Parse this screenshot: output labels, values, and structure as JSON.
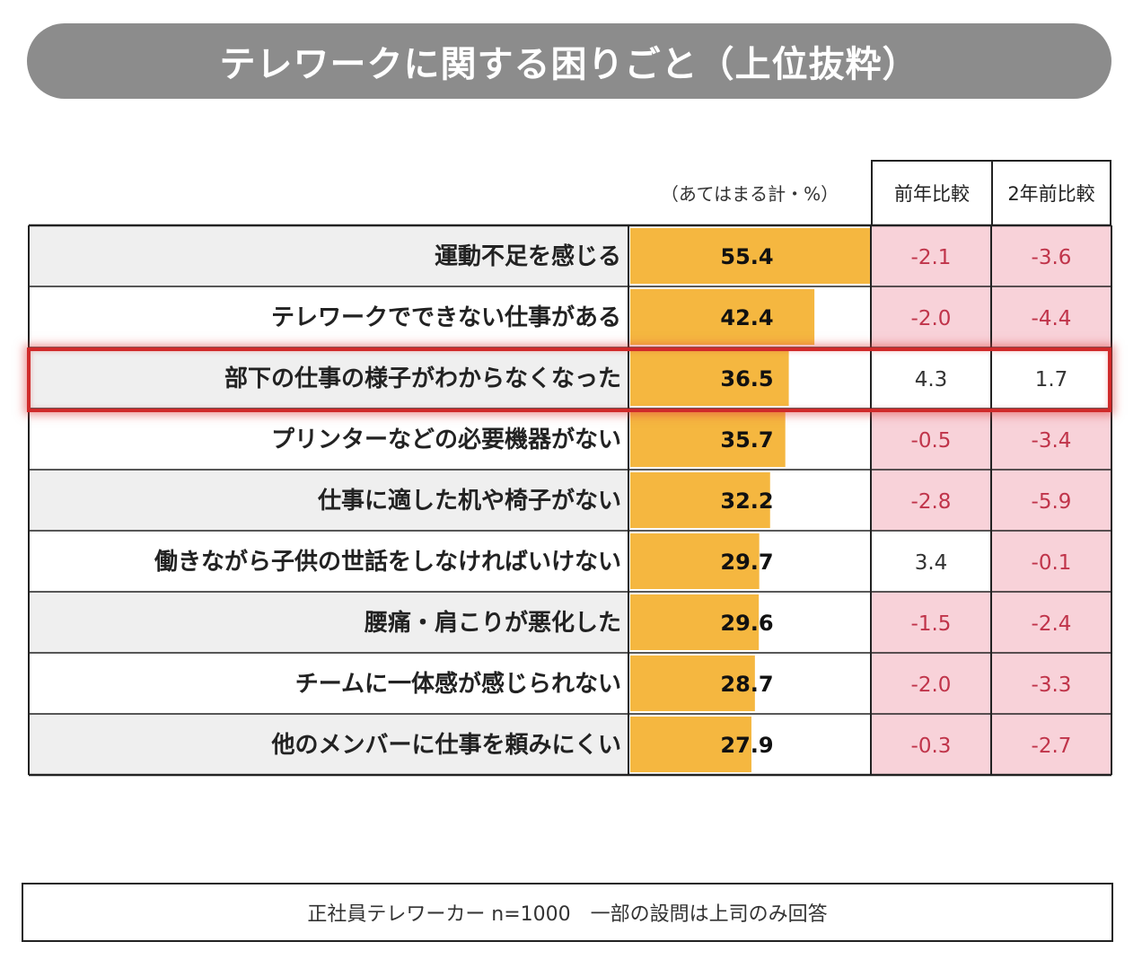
{
  "title": "テレワークに関する困りごと（上位抜粋）",
  "unit_label": "（あてはまる計・%）",
  "headers": {
    "prev_year": "前年比較",
    "two_years": "2年前比較"
  },
  "highlighted_row": 2,
  "colors": {
    "bar": "#f5b740",
    "pink": "#f8d2d9",
    "neg_text": "#c0344a",
    "pos_text": "#333333",
    "highlight": "#d02a2a"
  },
  "chart_data": {
    "type": "bar",
    "xlim": [
      0,
      55.4
    ],
    "categories": [
      "運動不足を感じる",
      "テレワークでできない仕事がある",
      "部下の仕事の様子がわからなくなった",
      "プリンターなどの必要機器がない",
      "仕事に適した机や椅子がない",
      "働きながら子供の世話をしなければいけない",
      "腰痛・肩こりが悪化した",
      "チームに一体感が感じられない",
      "他のメンバーに仕事を頼みにくい"
    ],
    "values": [
      55.4,
      42.4,
      36.5,
      35.7,
      32.2,
      29.7,
      29.6,
      28.7,
      27.9
    ],
    "prev_year_diff": [
      "-2.1",
      "-2.0",
      "4.3",
      "-0.5",
      "-2.8",
      "3.4",
      "-1.5",
      "-2.0",
      "-0.3"
    ],
    "two_years_diff": [
      "-3.6",
      "-4.4",
      "1.7",
      "-3.4",
      "-5.9",
      "-0.1",
      "-2.4",
      "-3.3",
      "-2.7"
    ]
  },
  "footnote": "正社員テレワーカー n=1000　一部の設問は上司のみ回答"
}
